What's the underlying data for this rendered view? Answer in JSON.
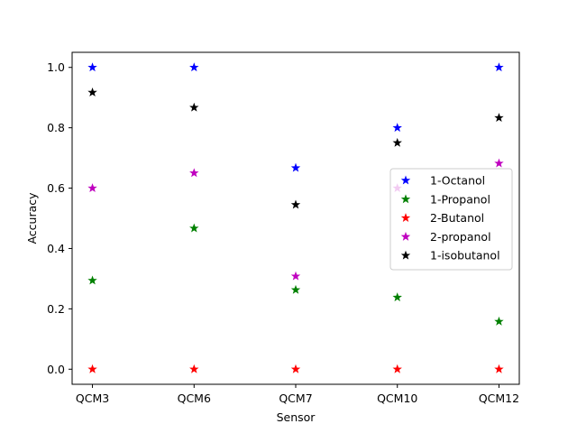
{
  "chart_data": {
    "type": "scatter",
    "title": "",
    "xlabel": "Sensor",
    "ylabel": "Accuracy",
    "categories": [
      "QCM3",
      "QCM6",
      "QCM7",
      "QCM10",
      "QCM12"
    ],
    "ylim": [
      -0.05,
      1.05
    ],
    "yticks": [
      0.0,
      0.2,
      0.4,
      0.6,
      0.8,
      1.0
    ],
    "ytick_labels": [
      "0.0",
      "0.2",
      "0.4",
      "0.6",
      "0.8",
      "1.0"
    ],
    "grid": false,
    "legend_position": "center-right",
    "marker": "star",
    "series": [
      {
        "name": "1-Octanol",
        "color": "#0000ff",
        "values": [
          1.0,
          1.0,
          0.667,
          0.8,
          1.0
        ]
      },
      {
        "name": "1-Propanol",
        "color": "#008000",
        "values": [
          0.294,
          0.467,
          0.263,
          0.238,
          0.158
        ]
      },
      {
        "name": "2-Butanol",
        "color": "#ff0000",
        "values": [
          0.0,
          0.0,
          0.0,
          0.0,
          0.0
        ]
      },
      {
        "name": "2-propanol",
        "color": "#bf00bf",
        "values": [
          0.6,
          0.65,
          0.308,
          0.6,
          0.682
        ]
      },
      {
        "name": "1-isobutanol",
        "color": "#000000",
        "values": [
          0.917,
          0.867,
          0.545,
          0.75,
          0.833
        ]
      }
    ]
  }
}
